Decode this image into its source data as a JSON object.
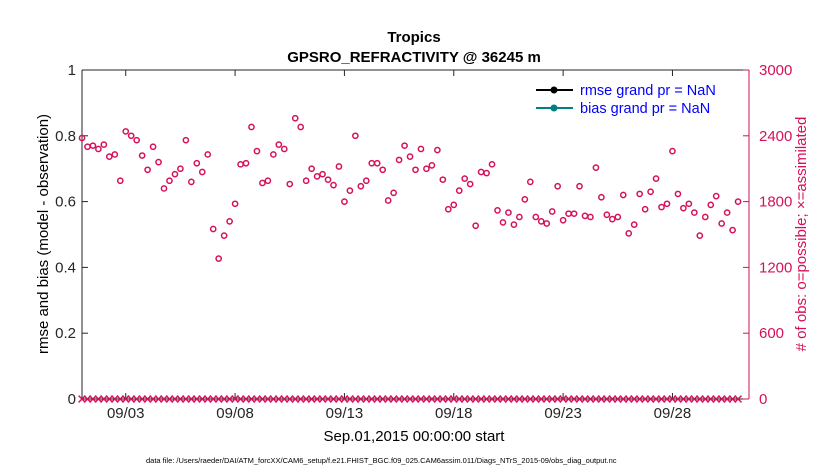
{
  "chart_data": {
    "type": "scatter",
    "title": "Tropics",
    "subtitle": "GPSRO_REFRACTIVITY @ 36245 m",
    "xlabel": "Sep.01,2015 00:00:00 start",
    "ylabel": "rmse and bias (model - observation)",
    "y2label": "# of obs: o=possible; ×=assimilated",
    "x_range_days": [
      0,
      30.5
    ],
    "ylim": [
      0,
      1
    ],
    "y2lim": [
      0,
      3000
    ],
    "x_ticks": [
      {
        "day": 2,
        "label": "09/03"
      },
      {
        "day": 7,
        "label": "09/08"
      },
      {
        "day": 12,
        "label": "09/13"
      },
      {
        "day": 17,
        "label": "09/18"
      },
      {
        "day": 22,
        "label": "09/23"
      },
      {
        "day": 27,
        "label": "09/28"
      }
    ],
    "y_ticks": [
      {
        "value": 0,
        "label": "0"
      },
      {
        "value": 0.2,
        "label": "0.2"
      },
      {
        "value": 0.4,
        "label": "0.4"
      },
      {
        "value": 0.6,
        "label": "0.6"
      },
      {
        "value": 0.8,
        "label": "0.8"
      },
      {
        "value": 1,
        "label": "1"
      }
    ],
    "y2_ticks": [
      {
        "value": 0,
        "label": "0"
      },
      {
        "value": 600,
        "label": "600"
      },
      {
        "value": 1200,
        "label": "1200"
      },
      {
        "value": 1800,
        "label": "1800"
      },
      {
        "value": 2400,
        "label": "2400"
      },
      {
        "value": 3000,
        "label": "3000"
      }
    ],
    "legend": {
      "placement": "top-right",
      "entries": [
        {
          "label": "rmse grand pr = NaN",
          "color": "#000000"
        },
        {
          "label": "bias grand pr = NaN",
          "color": "#008080"
        }
      ]
    },
    "series": [
      {
        "name": "possible",
        "marker": "o",
        "color": "#d6105a",
        "axis": "right",
        "x_start_day": 0,
        "x_step_day": 0.25,
        "values": [
          2380,
          2300,
          2310,
          2280,
          2320,
          2210,
          2230,
          1990,
          2440,
          2400,
          2360,
          2220,
          2090,
          2300,
          2160,
          1920,
          1990,
          2050,
          2100,
          2360,
          1980,
          2150,
          2070,
          2230,
          1550,
          1280,
          1490,
          1620,
          1780,
          2140,
          2150,
          2480,
          2260,
          1970,
          1990,
          2230,
          2320,
          2280,
          1960,
          2560,
          2480,
          1990,
          2100,
          2030,
          2050,
          2000,
          1950,
          2120,
          1800,
          1900,
          2400,
          1940,
          1990,
          2150,
          2150,
          2090,
          1810,
          1880,
          2180,
          2310,
          2210,
          2090,
          2280,
          2100,
          2130,
          2270,
          2000,
          1730,
          1770,
          1900,
          2010,
          1960,
          1580,
          2070,
          2060,
          2140,
          1720,
          1610,
          1700,
          1590,
          1660,
          1820,
          1980,
          1660,
          1620,
          1600,
          1710,
          1940,
          1630,
          1690,
          1690,
          1940,
          1670,
          1660,
          2110,
          1840,
          1680,
          1640,
          1660,
          1860,
          1510,
          1590,
          1870,
          1730,
          1890,
          2010,
          1750,
          1780,
          2260,
          1870,
          1740,
          1780,
          1700,
          1490,
          1660,
          1770,
          1850,
          1600,
          1700,
          1540,
          1800
        ]
      },
      {
        "name": "assimilated",
        "marker": "x",
        "color": "#d6105a",
        "axis": "right",
        "x_start_day": 0,
        "x_step_day": 0.25,
        "constant": 0,
        "count": 121
      }
    ]
  },
  "footnote": "data file: /Users/raeder/DAI/ATM_forcXX/CAM6_setup/f.e21.FHIST_BGC.f09_025.CAM6assim.011/Diags_NTrS_2015-09/obs_diag_output.nc"
}
